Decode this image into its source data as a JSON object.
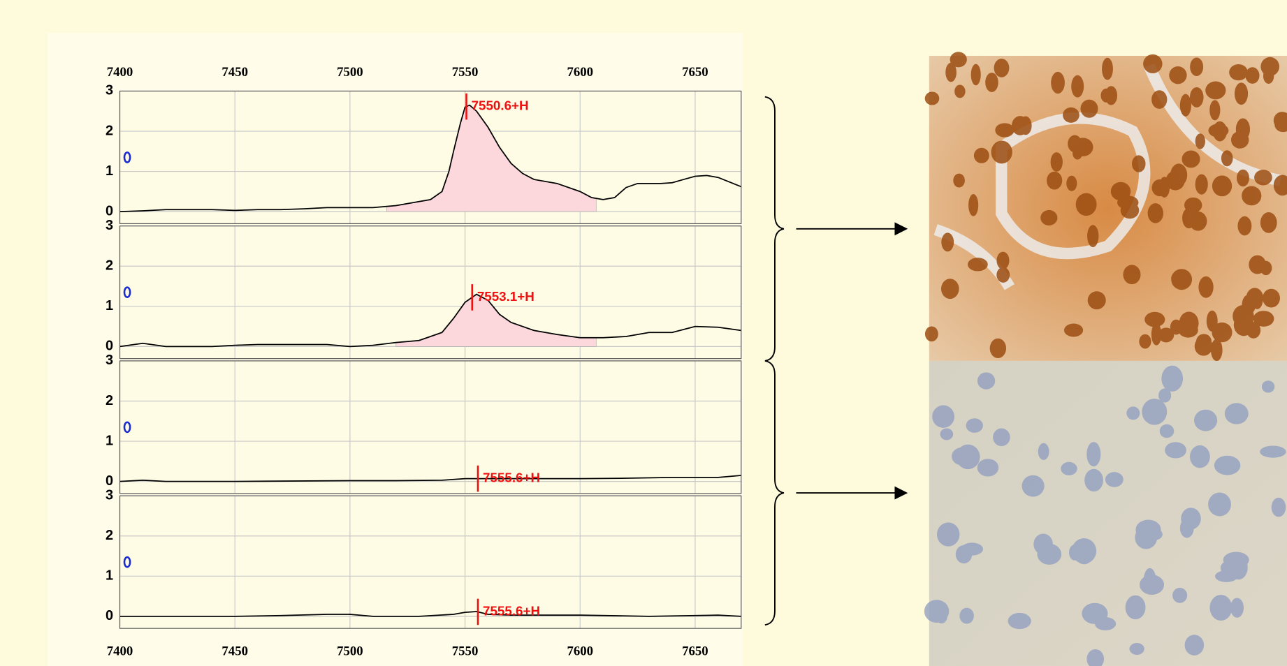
{
  "chart_data": [
    {
      "type": "line",
      "color": "#000000",
      "fill_color": "#fcd8dc",
      "annotation_color": "#f01010",
      "x": [
        7400,
        7410,
        7420,
        7430,
        7440,
        7450,
        7460,
        7470,
        7480,
        7490,
        7500,
        7510,
        7520,
        7530,
        7535,
        7540,
        7543,
        7545,
        7548,
        7550,
        7552,
        7555,
        7560,
        7565,
        7570,
        7575,
        7580,
        7590,
        7600,
        7605,
        7610,
        7615,
        7620,
        7625,
        7635,
        7640,
        7645,
        7650,
        7655,
        7660,
        7670
      ],
      "values": [
        0.0,
        0.02,
        0.05,
        0.05,
        0.05,
        0.03,
        0.05,
        0.05,
        0.07,
        0.1,
        0.1,
        0.1,
        0.15,
        0.25,
        0.3,
        0.5,
        1.0,
        1.5,
        2.2,
        2.6,
        2.65,
        2.5,
        2.1,
        1.6,
        1.2,
        0.95,
        0.8,
        0.7,
        0.5,
        0.35,
        0.3,
        0.35,
        0.6,
        0.7,
        0.7,
        0.72,
        0.8,
        0.88,
        0.9,
        0.85,
        0.62
      ],
      "shade": [
        7516,
        7607
      ],
      "annotations": [
        {
          "x": 7550.6,
          "label": "7550.6+H"
        }
      ],
      "xlim": [
        7400,
        7670
      ],
      "xticks": [
        7400,
        7450,
        7500,
        7550,
        7600,
        7650
      ],
      "ylim": [
        -0.3,
        3
      ],
      "yticks": [
        0,
        1,
        2,
        3
      ],
      "grid": true
    },
    {
      "type": "line",
      "color": "#000000",
      "fill_color": "#fcd8dc",
      "annotation_color": "#f01010",
      "x": [
        7400,
        7410,
        7420,
        7430,
        7440,
        7450,
        7460,
        7470,
        7480,
        7490,
        7500,
        7510,
        7520,
        7530,
        7540,
        7545,
        7550,
        7555,
        7560,
        7565,
        7570,
        7580,
        7590,
        7600,
        7610,
        7620,
        7630,
        7640,
        7650,
        7660,
        7670
      ],
      "values": [
        0.0,
        0.08,
        0.0,
        0.0,
        0.0,
        0.03,
        0.05,
        0.05,
        0.05,
        0.05,
        0.0,
        0.03,
        0.1,
        0.15,
        0.35,
        0.7,
        1.1,
        1.3,
        1.15,
        0.8,
        0.6,
        0.4,
        0.3,
        0.22,
        0.22,
        0.25,
        0.35,
        0.35,
        0.5,
        0.48,
        0.4
      ],
      "shade": [
        7520,
        7607
      ],
      "annotations": [
        {
          "x": 7553.1,
          "label": "7553.1+H"
        }
      ],
      "xlim": [
        7400,
        7670
      ],
      "xticks": [
        7400,
        7450,
        7500,
        7550,
        7600,
        7650
      ],
      "ylim": [
        -0.3,
        3
      ],
      "yticks": [
        0,
        1,
        2,
        3
      ],
      "grid": true
    },
    {
      "type": "line",
      "color": "#000000",
      "annotation_color": "#f01010",
      "x": [
        7400,
        7410,
        7420,
        7450,
        7500,
        7520,
        7540,
        7550,
        7560,
        7580,
        7600,
        7620,
        7640,
        7660,
        7670
      ],
      "values": [
        0.0,
        0.03,
        0.0,
        0.0,
        0.02,
        0.02,
        0.03,
        0.07,
        0.07,
        0.07,
        0.07,
        0.08,
        0.1,
        0.1,
        0.15
      ],
      "annotations": [
        {
          "x": 7555.6,
          "label": "7555.6+H"
        }
      ],
      "xlim": [
        7400,
        7670
      ],
      "xticks": [
        7400,
        7450,
        7500,
        7550,
        7600,
        7650
      ],
      "ylim": [
        -0.3,
        3
      ],
      "yticks": [
        0,
        1,
        2,
        3
      ],
      "grid": true
    },
    {
      "type": "line",
      "color": "#000000",
      "annotation_color": "#f01010",
      "x": [
        7400,
        7450,
        7470,
        7490,
        7500,
        7510,
        7530,
        7545,
        7550,
        7555,
        7560,
        7570,
        7600,
        7630,
        7650,
        7660,
        7670
      ],
      "values": [
        0.0,
        0.0,
        0.02,
        0.05,
        0.05,
        0.0,
        0.0,
        0.05,
        0.1,
        0.12,
        0.05,
        0.03,
        0.03,
        0.0,
        0.02,
        0.03,
        0.0
      ],
      "annotations": [
        {
          "x": 7555.6,
          "label": "7555.6+H"
        }
      ],
      "xlim": [
        7400,
        7670
      ],
      "xticks": [
        7400,
        7450,
        7500,
        7550,
        7600,
        7650
      ],
      "ylim": [
        -0.3,
        3
      ],
      "yticks": [
        0,
        1,
        2,
        3
      ],
      "grid": true
    }
  ]
}
